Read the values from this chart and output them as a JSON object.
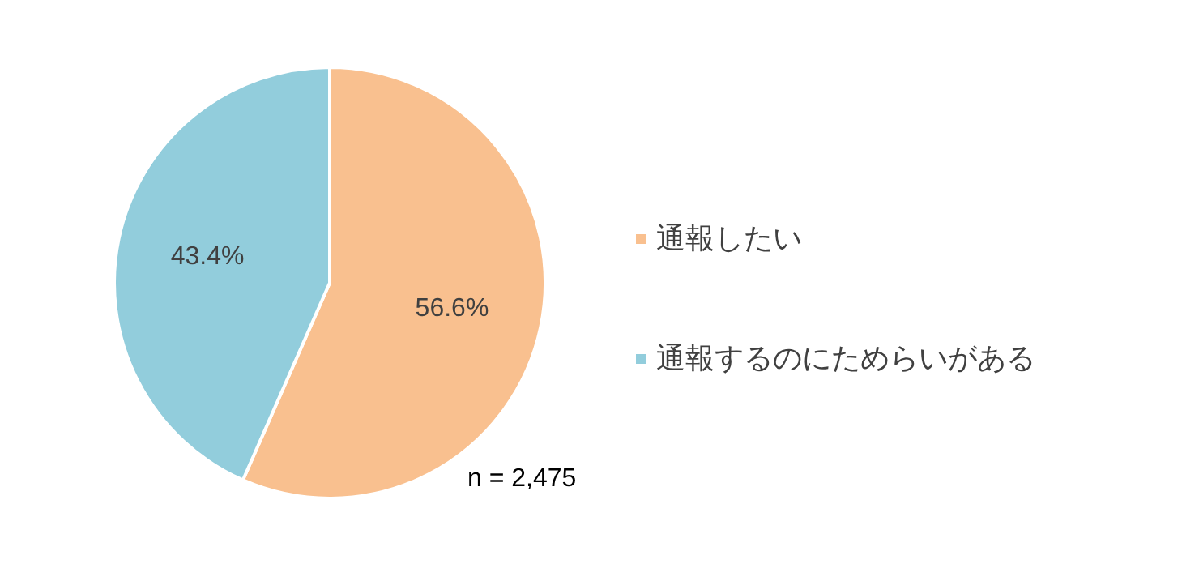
{
  "chart_data": {
    "type": "pie",
    "categories": [
      "通報したい",
      "通報するのにためらいがある"
    ],
    "values": [
      56.6,
      43.4
    ],
    "colors": [
      "#f9c08f",
      "#92cddc"
    ],
    "value_labels": [
      "56.6%",
      "43.4%"
    ],
    "legend": "right",
    "annotations": [
      "n = 2,475"
    ]
  }
}
